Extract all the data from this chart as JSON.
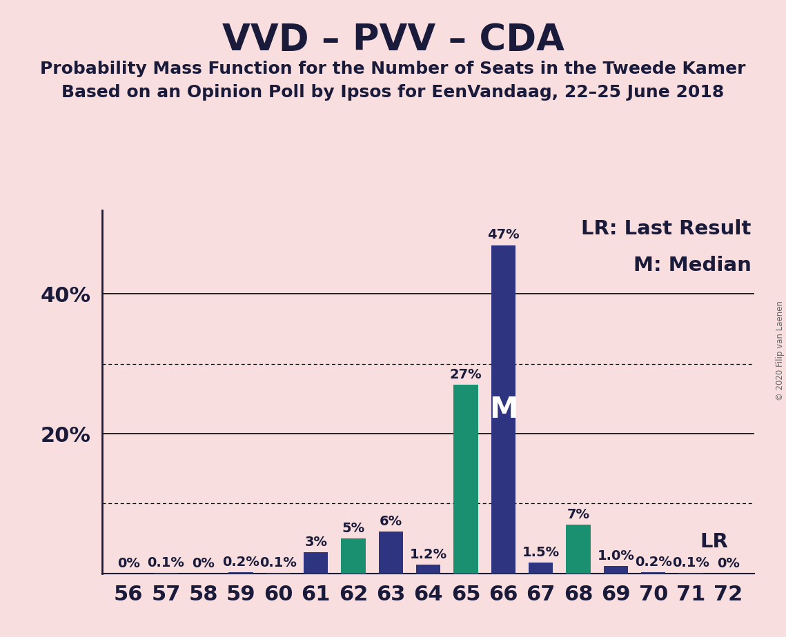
{
  "title": "VVD – PVV – CDA",
  "subtitle1": "Probability Mass Function for the Number of Seats in the Tweede Kamer",
  "subtitle2": "Based on an Opinion Poll by Ipsos for EenVandaag, 22–25 June 2018",
  "copyright": "© 2020 Filip van Laenen",
  "seats": [
    56,
    57,
    58,
    59,
    60,
    61,
    62,
    63,
    64,
    65,
    66,
    67,
    68,
    69,
    70,
    71,
    72
  ],
  "probabilities": [
    0.0,
    0.1,
    0.0,
    0.2,
    0.1,
    3.0,
    5.0,
    6.0,
    1.2,
    27.0,
    47.0,
    1.5,
    7.0,
    1.0,
    0.2,
    0.1,
    0.0
  ],
  "labels": [
    "0%",
    "0.1%",
    "0%",
    "0.2%",
    "0.1%",
    "3%",
    "5%",
    "6%",
    "1.2%",
    "27%",
    "47%",
    "1.5%",
    "7%",
    "1.0%",
    "0.2%",
    "0.1%",
    "0%"
  ],
  "bar_colors": [
    "#2e3480",
    "#2e3480",
    "#2e3480",
    "#2e3480",
    "#2e3480",
    "#2e3480",
    "#1a9070",
    "#2e3480",
    "#2e3480",
    "#1a9070",
    "#2e3480",
    "#2e3480",
    "#1a9070",
    "#2e3480",
    "#2e3480",
    "#2e3480",
    "#2e3480"
  ],
  "median_seat": 66,
  "last_result_seat": 68,
  "background_color": "#f8dede",
  "ytick_positions": [
    20,
    40
  ],
  "ytick_labels": [
    "20%",
    "40%"
  ],
  "dotted_gridlines": [
    10,
    30
  ],
  "solid_gridlines": [
    20,
    40
  ],
  "legend_lr": "LR: Last Result",
  "legend_m": "M: Median",
  "lr_label": "LR",
  "m_label": "M",
  "title_fontsize": 38,
  "subtitle_fontsize": 18,
  "axis_label_fontsize": 22,
  "bar_label_fontsize": 14,
  "legend_fontsize": 21,
  "text_color": "#1a1a3a"
}
